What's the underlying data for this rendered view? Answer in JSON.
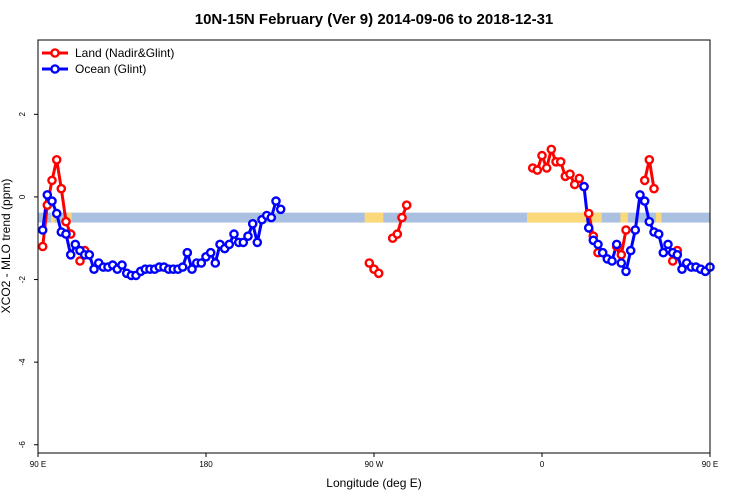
{
  "chart_data": {
    "type": "line",
    "title": "10N-15N February (Ver 9)   2014-09-06 to 2018-12-31",
    "xlabel": "Longitude (deg E)",
    "ylabel": "XCO2 - MLO trend (ppm)",
    "xlim": [
      90,
      450
    ],
    "ylim": [
      -6.2,
      3.8
    ],
    "x_ticks": [
      {
        "value": 90,
        "label": "90 E"
      },
      {
        "value": 180,
        "label": "180"
      },
      {
        "value": 270,
        "label": "90 W"
      },
      {
        "value": 360,
        "label": "0"
      },
      {
        "value": 450,
        "label": "90 E"
      },
      {
        "value": 540,
        "label": "180"
      }
    ],
    "y_ticks": [
      {
        "value": -6,
        "label": "-6"
      },
      {
        "value": -4,
        "label": "-4"
      },
      {
        "value": -2,
        "label": "-2"
      },
      {
        "value": 0,
        "label": "0"
      },
      {
        "value": 2,
        "label": "2"
      }
    ],
    "band": {
      "ymin": -0.62,
      "ymax": -0.38,
      "color": "#a9c0e0"
    },
    "land_fill_color": "#fbd97a",
    "legend_position": "top-left",
    "series": [
      {
        "name": "Land (Nadir&Glint)",
        "color": "#ff0000",
        "segments": [
          [
            [
              92.5,
              -1.2
            ],
            [
              95,
              -0.2
            ],
            [
              97.5,
              0.4
            ],
            [
              100,
              0.9
            ],
            [
              102.5,
              0.2
            ],
            [
              105,
              -0.6
            ],
            [
              107.5,
              -0.9
            ]
          ],
          [
            [
              112.5,
              -1.55
            ],
            [
              115,
              -1.3
            ]
          ],
          [
            [
              267.5,
              -1.6
            ],
            [
              270,
              -1.75
            ],
            [
              272.5,
              -1.85
            ]
          ],
          [
            [
              280,
              -1.0
            ],
            [
              282.5,
              -0.9
            ],
            [
              285,
              -0.5
            ],
            [
              287.5,
              -0.2
            ]
          ],
          [
            [
              355,
              0.7
            ],
            [
              357.5,
              0.65
            ],
            [
              360,
              1.0
            ],
            [
              362.5,
              0.7
            ],
            [
              365,
              1.15
            ],
            [
              367.5,
              0.85
            ],
            [
              370,
              0.85
            ],
            [
              372.5,
              0.5
            ],
            [
              375,
              0.55
            ],
            [
              377.5,
              0.3
            ],
            [
              380,
              0.45
            ],
            [
              382.5,
              0.25
            ]
          ],
          [
            [
              385,
              -0.4
            ],
            [
              387.5,
              -0.95
            ],
            [
              390,
              -1.35
            ]
          ],
          [
            [
              400,
              -1.2
            ],
            [
              402.5,
              -1.4
            ],
            [
              405,
              -0.8
            ]
          ],
          [
            [
              415,
              0.4
            ],
            [
              417.5,
              0.9
            ],
            [
              420,
              0.2
            ]
          ],
          [
            [
              430,
              -1.55
            ],
            [
              432.5,
              -1.3
            ]
          ]
        ]
      },
      {
        "name": "Ocean (Glint)",
        "color": "#0000ff",
        "segments": [
          [
            [
              92.5,
              -0.8
            ],
            [
              95,
              0.05
            ],
            [
              97.5,
              -0.1
            ],
            [
              100,
              -0.4
            ],
            [
              102.5,
              -0.85
            ],
            [
              105,
              -0.9
            ],
            [
              107.5,
              -1.4
            ],
            [
              110,
              -1.15
            ],
            [
              112.5,
              -1.3
            ],
            [
              115,
              -1.4
            ],
            [
              117.5,
              -1.4
            ],
            [
              120,
              -1.75
            ],
            [
              122.5,
              -1.6
            ],
            [
              125,
              -1.7
            ],
            [
              127.5,
              -1.7
            ],
            [
              130,
              -1.65
            ],
            [
              132.5,
              -1.75
            ],
            [
              135,
              -1.65
            ],
            [
              137.5,
              -1.85
            ],
            [
              140,
              -1.9
            ],
            [
              142.5,
              -1.9
            ],
            [
              145,
              -1.8
            ],
            [
              147.5,
              -1.75
            ],
            [
              150,
              -1.75
            ],
            [
              152.5,
              -1.75
            ],
            [
              155,
              -1.7
            ],
            [
              157.5,
              -1.7
            ],
            [
              160,
              -1.75
            ],
            [
              162.5,
              -1.75
            ],
            [
              165,
              -1.75
            ],
            [
              167.5,
              -1.7
            ],
            [
              170,
              -1.35
            ],
            [
              172.5,
              -1.75
            ],
            [
              175,
              -1.6
            ],
            [
              177.5,
              -1.6
            ],
            [
              180,
              -1.45
            ],
            [
              182.5,
              -1.35
            ],
            [
              185,
              -1.6
            ],
            [
              187.5,
              -1.15
            ],
            [
              190,
              -1.25
            ],
            [
              192.5,
              -1.15
            ],
            [
              195,
              -0.9
            ],
            [
              197.5,
              -1.1
            ],
            [
              200,
              -1.1
            ],
            [
              202.5,
              -0.95
            ],
            [
              205,
              -0.65
            ],
            [
              207.5,
              -1.1
            ],
            [
              210,
              -0.55
            ],
            [
              212.5,
              -0.45
            ],
            [
              215,
              -0.5
            ],
            [
              217.5,
              -0.1
            ],
            [
              220,
              -0.3
            ]
          ],
          [
            [
              382.5,
              0.25
            ],
            [
              385,
              -0.75
            ],
            [
              387.5,
              -1.05
            ],
            [
              390,
              -1.15
            ],
            [
              392.5,
              -1.35
            ],
            [
              395,
              -1.5
            ],
            [
              397.5,
              -1.55
            ],
            [
              400,
              -1.15
            ],
            [
              402.5,
              -1.6
            ],
            [
              405,
              -1.8
            ],
            [
              407.5,
              -1.3
            ],
            [
              410,
              -0.8
            ],
            [
              412.5,
              0.05
            ],
            [
              415,
              -0.1
            ],
            [
              417.5,
              -0.6
            ],
            [
              420,
              -0.85
            ],
            [
              422.5,
              -0.9
            ],
            [
              425,
              -1.35
            ],
            [
              427.5,
              -1.15
            ],
            [
              430,
              -1.35
            ],
            [
              432.5,
              -1.4
            ],
            [
              435,
              -1.75
            ],
            [
              437.5,
              -1.6
            ],
            [
              440,
              -1.7
            ],
            [
              442.5,
              -1.7
            ],
            [
              445,
              -1.75
            ],
            [
              447.5,
              -1.8
            ],
            [
              450,
              -1.7
            ]
          ]
        ]
      }
    ],
    "land_fill_regions": [
      {
        "x0": 97,
        "x1": 99
      },
      {
        "x0": 106,
        "x1": 108
      },
      {
        "x0": 265,
        "x1": 275
      },
      {
        "x0": 352,
        "x1": 392
      },
      {
        "x0": 402,
        "x1": 406
      },
      {
        "x0": 421,
        "x1": 424
      }
    ]
  }
}
